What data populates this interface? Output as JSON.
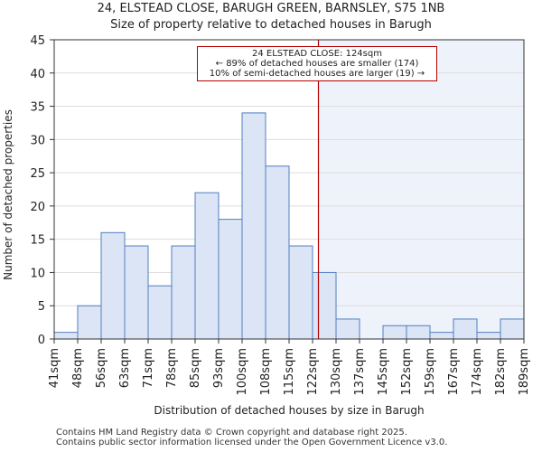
{
  "title_line1": "24, ELSTEAD CLOSE, BARUGH GREEN, BARNSLEY, S75 1NB",
  "title_line2": "Size of property relative to detached houses in Barugh",
  "footer_line1": "Contains HM Land Registry data © Crown copyright and database right 2025.",
  "footer_line2": "Contains public sector information licensed under the Open Government Licence v3.0.",
  "colors": {
    "bar_fill": "#dce5f5",
    "bar_stroke": "#4f7ec1",
    "shade": "#eef2fb",
    "marker": "#b40000",
    "grid": "#dddddd"
  },
  "annotation": {
    "line1": "24 ELSTEAD CLOSE: 124sqm",
    "line2": "← 89% of detached houses are smaller (174)",
    "line3": "10% of semi-detached houses are larger (19) →"
  },
  "chart_data": {
    "type": "bar",
    "title": "Size of property relative to detached houses in Barugh",
    "xlabel": "Distribution of detached houses by size in Barugh",
    "ylabel": "Number of detached properties",
    "ylim": [
      0,
      45
    ],
    "yticks": [
      0,
      5,
      10,
      15,
      20,
      25,
      30,
      35,
      40,
      45
    ],
    "bin_edges": [
      "41sqm",
      "48sqm",
      "56sqm",
      "63sqm",
      "71sqm",
      "78sqm",
      "85sqm",
      "93sqm",
      "100sqm",
      "108sqm",
      "115sqm",
      "122sqm",
      "130sqm",
      "137sqm",
      "145sqm",
      "152sqm",
      "159sqm",
      "167sqm",
      "174sqm",
      "182sqm",
      "189sqm"
    ],
    "values": [
      1,
      5,
      16,
      14,
      8,
      14,
      22,
      18,
      34,
      26,
      14,
      10,
      3,
      0,
      2,
      2,
      1,
      3,
      1,
      3
    ],
    "marker_value_sqm": 124,
    "marker_bin_position": 11.25
  }
}
